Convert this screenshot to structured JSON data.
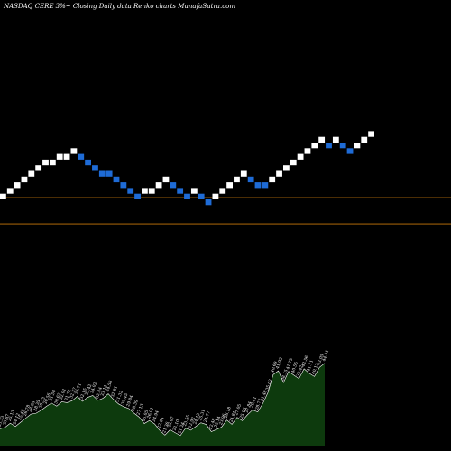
{
  "header": {
    "title": "NASDAQ CERE 3%~  Closing Daily data  Renko  charts MunafaSutra.com"
  },
  "colors": {
    "background": "#000000",
    "up_brick": "#ffffff",
    "down_brick": "#1e6bd6",
    "reference_line": "#c8780a",
    "volume_fill": "#0d3a0d",
    "volume_stroke": "#ffffff",
    "text": "#ffffff"
  },
  "chart_data": [
    {
      "type": "renko",
      "title": "NASDAQ CERE 3%~  Closing Daily data  Renko  charts MunafaSutra.com",
      "brick_size_percent": 3,
      "xlabel": "",
      "ylabel": "",
      "grid": false,
      "reference_lines_levels": [
        -4.8,
        -0.2
      ],
      "bricks": [
        {
          "level": 0,
          "dir": "up"
        },
        {
          "level": 1,
          "dir": "up"
        },
        {
          "level": 2,
          "dir": "up"
        },
        {
          "level": 3,
          "dir": "up"
        },
        {
          "level": 4,
          "dir": "up"
        },
        {
          "level": 5,
          "dir": "up"
        },
        {
          "level": 6,
          "dir": "up"
        },
        {
          "level": 6,
          "dir": "up"
        },
        {
          "level": 7,
          "dir": "up"
        },
        {
          "level": 7,
          "dir": "up"
        },
        {
          "level": 8,
          "dir": "up"
        },
        {
          "level": 7,
          "dir": "down"
        },
        {
          "level": 6,
          "dir": "down"
        },
        {
          "level": 5,
          "dir": "down"
        },
        {
          "level": 4,
          "dir": "down"
        },
        {
          "level": 4,
          "dir": "down"
        },
        {
          "level": 3,
          "dir": "down"
        },
        {
          "level": 2,
          "dir": "down"
        },
        {
          "level": 1,
          "dir": "down"
        },
        {
          "level": 0,
          "dir": "down"
        },
        {
          "level": 1,
          "dir": "up"
        },
        {
          "level": 1,
          "dir": "up"
        },
        {
          "level": 2,
          "dir": "up"
        },
        {
          "level": 3,
          "dir": "up"
        },
        {
          "level": 2,
          "dir": "down"
        },
        {
          "level": 1,
          "dir": "down"
        },
        {
          "level": 0,
          "dir": "down"
        },
        {
          "level": 1,
          "dir": "up"
        },
        {
          "level": 0,
          "dir": "down"
        },
        {
          "level": -1,
          "dir": "down"
        },
        {
          "level": 0,
          "dir": "up"
        },
        {
          "level": 1,
          "dir": "up"
        },
        {
          "level": 2,
          "dir": "up"
        },
        {
          "level": 3,
          "dir": "up"
        },
        {
          "level": 4,
          "dir": "up"
        },
        {
          "level": 3,
          "dir": "down"
        },
        {
          "level": 2,
          "dir": "down"
        },
        {
          "level": 2,
          "dir": "down"
        },
        {
          "level": 3,
          "dir": "up"
        },
        {
          "level": 4,
          "dir": "up"
        },
        {
          "level": 5,
          "dir": "up"
        },
        {
          "level": 6,
          "dir": "up"
        },
        {
          "level": 7,
          "dir": "up"
        },
        {
          "level": 8,
          "dir": "up"
        },
        {
          "level": 9,
          "dir": "up"
        },
        {
          "level": 10,
          "dir": "up"
        },
        {
          "level": 9,
          "dir": "down"
        },
        {
          "level": 10,
          "dir": "up"
        },
        {
          "level": 9,
          "dir": "down"
        },
        {
          "level": 8,
          "dir": "down"
        },
        {
          "level": 9,
          "dir": "up"
        },
        {
          "level": 10,
          "dir": "up"
        },
        {
          "level": 11,
          "dir": "up"
        }
      ]
    },
    {
      "type": "area",
      "title": "",
      "series": [
        {
          "values": [
            23.33,
            23.87,
            25.13,
            24.12,
            25.45,
            26.78,
            28.05,
            28.35,
            29.33,
            30.56,
            31.58,
            30.62,
            32.01,
            31.72,
            32.37,
            33.71,
            32.15,
            33.42,
            34.02,
            32.44,
            33.14,
            34.56,
            32.81,
            31.32,
            30.45,
            29.84,
            28.39,
            27.13,
            25.05,
            26.01,
            24.94,
            22.84,
            21.36,
            23.07,
            22.1,
            21.24,
            23.55,
            22.92,
            24.13,
            25.31,
            24.77,
            22.48,
            23.14,
            23.96,
            26.18,
            24.81,
            27.05,
            25.96,
            27.84,
            29.41,
            28.77,
            31.48,
            35.02,
            40.69,
            41.92,
            38.15,
            41.73,
            40.55,
            39.42,
            42.56,
            41.11,
            40.12,
            43.05,
            44.31
          ]
        }
      ]
    }
  ]
}
